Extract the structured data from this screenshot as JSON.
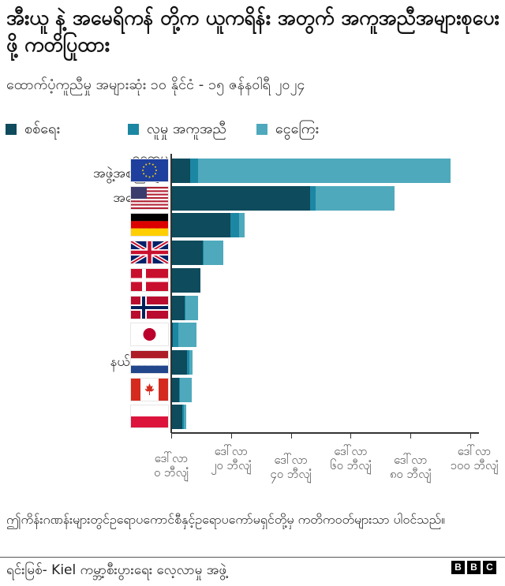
{
  "header": {
    "title": "အီးယူ နဲ့ အမေရိကန် တို့က ယူကရိန်း အတွက် အကူအညီအများစုပေးဖို့ ကတိပြုထား",
    "subtitle": "ထောက်ပံ့ကူညီမှု အများဆုံး ၁၀ နိုင်ငံ - ၁၅ ဇန်နဝါရီ ၂၀၂၄"
  },
  "legend": {
    "items": [
      {
        "label": "စစ်ရေး",
        "color": "#0e4b5c"
      },
      {
        "label": "လူမှု အကူအညီ",
        "color": "#1c87a3"
      },
      {
        "label": "ငွေကြေး",
        "color": "#4ea9bc"
      }
    ]
  },
  "colors": {
    "military": "#0e4b5c",
    "humanitarian": "#1c87a3",
    "financial": "#4ea9bc",
    "axis": "#333333"
  },
  "chart_data": {
    "type": "bar",
    "orientation": "horizontal",
    "stacked": true,
    "title": "အီးယူ နဲ့ အမေရိကန် တို့က ယူကရိန်း အတွက် အကူအညီအများစုပေးဖို့ ကတိပြုထား",
    "subtitle": "ထောက်ပံ့ကူညီမှု အများဆုံး ၁၀ နိုင်ငံ - ၁၅ ဇန်နဝါရီ ၂၀၂၄",
    "xlabel": "",
    "ylabel": "",
    "xlim": [
      0,
      100
    ],
    "unit": "USD billion",
    "grid": false,
    "legend_position": "top",
    "categories": [
      "ဥရောပ\nအဖွဲ့အစည်းများ",
      "အမေရိကန်",
      "ဂျာမနီ",
      "ယူကေ",
      "ဒိန်းမတ်",
      "နော်ဝေ",
      "ဂျပန်",
      "နယ်သာလန်",
      "ကနေဒါ",
      "ပိုလန်"
    ],
    "flags": [
      "eu",
      "usa",
      "germany",
      "uk",
      "denmark",
      "norway",
      "japan",
      "netherlands",
      "canada",
      "poland"
    ],
    "series": [
      {
        "name": "စစ်ရေး",
        "values": [
          6.1,
          46.3,
          19.5,
          10.3,
          9.5,
          4.2,
          0.3,
          5.0,
          2.4,
          3.4
        ]
      },
      {
        "name": "လူမှု အကူအညီ",
        "values": [
          2.6,
          1.8,
          2.9,
          0.3,
          0.0,
          0.2,
          1.8,
          0.8,
          0.3,
          0.5
        ]
      },
      {
        "name": "ငွေကြေး",
        "values": [
          84.4,
          26.4,
          1.8,
          6.6,
          0.0,
          4.2,
          6.1,
          1.0,
          4.0,
          0.8
        ]
      }
    ],
    "x_ticks": [
      0,
      20,
      40,
      60,
      80,
      100
    ],
    "x_tick_labels": [
      "ဒေါ်လာ\n၀ ဘီလျံ",
      "ဒေါ်လာ\n၂၀ ဘီလျံ",
      "ဒေါ်လာ\n၄၀ ဘီလျံ",
      "ဒေါ်လာ\n၆၀ ဘီလျံ",
      "ဒေါ်လာ\n၈၀ ဘီလျံ",
      "ဒေါ်လာ\n၁၀၀ ဘီလျံ"
    ],
    "annotations": []
  },
  "footer": {
    "note": "ဤကိန်းဂဏန်းများတွင်ဥရောပကောင်စီနှင့်ဥရောပကော်မရှင်တို့မှ ကတိကဝတ်များသာ ပါဝင်သည်။",
    "source": "ရင်းမြစ်- Kiel ကမ္ဘာ့စီးပွားရေး လေ့လာမှု အဖွဲ့",
    "logo": [
      "B",
      "B",
      "C"
    ]
  }
}
